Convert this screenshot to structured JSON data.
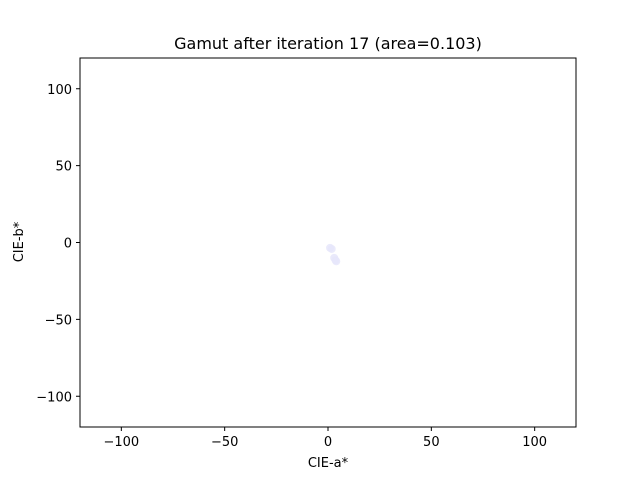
{
  "chart_data": {
    "type": "scatter",
    "title": "Gamut after iteration 17 (area=0.103)",
    "xlabel": "CIE-a*",
    "ylabel": "CIE-b*",
    "xlim": [
      -120,
      120
    ],
    "ylim": [
      -120,
      120
    ],
    "xticks": [
      -100,
      -50,
      0,
      50,
      100
    ],
    "yticks": [
      -100,
      -50,
      0,
      50,
      100
    ],
    "xtick_labels": [
      "−100",
      "−50",
      "0",
      "50",
      "100"
    ],
    "ytick_labels": [
      "−100",
      "−50",
      "0",
      "50",
      "100"
    ],
    "grid": false,
    "point_color": "#e6e6fa",
    "points": [
      {
        "x": 1.0,
        "y": -3.5
      },
      {
        "x": 1.8,
        "y": -4.2
      },
      {
        "x": 3.0,
        "y": -10.0
      },
      {
        "x": 3.6,
        "y": -11.5
      },
      {
        "x": 4.0,
        "y": -12.2
      }
    ]
  }
}
